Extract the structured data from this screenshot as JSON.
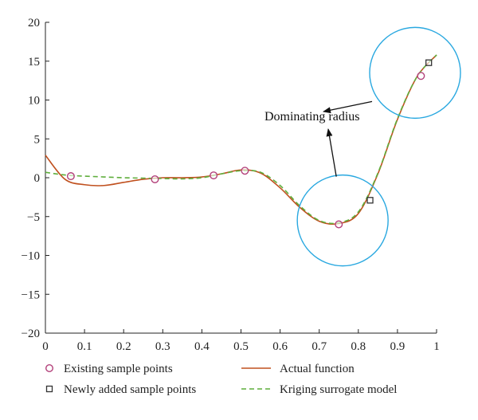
{
  "chart_data": {
    "type": "line",
    "xlim": [
      0,
      1
    ],
    "ylim": [
      -20,
      20
    ],
    "x_ticks": [
      0,
      0.1,
      0.2,
      0.3,
      0.4,
      0.5,
      0.6,
      0.7,
      0.8,
      0.9,
      1
    ],
    "x_tick_labels": [
      "0",
      "0.1",
      "0.2",
      "0.3",
      "0.4",
      "0.5",
      "0.6",
      "0.7",
      "0.8",
      "0.9",
      "1"
    ],
    "y_ticks": [
      -20,
      -15,
      -10,
      -5,
      0,
      5,
      10,
      15,
      20
    ],
    "y_tick_labels": [
      "−20",
      "−15",
      "−10",
      "−5",
      "0",
      "5",
      "10",
      "15",
      "20"
    ],
    "grid": false,
    "legend_position": "bottom",
    "series": [
      {
        "name": "Actual function",
        "style": "solid",
        "color": "#c0501e",
        "x": [
          0,
          0.05,
          0.1,
          0.15,
          0.2,
          0.25,
          0.3,
          0.35,
          0.4,
          0.45,
          0.5,
          0.55,
          0.6,
          0.65,
          0.7,
          0.75,
          0.8,
          0.85,
          0.9,
          0.95,
          1.0
        ],
        "y": [
          2.9,
          -0.2,
          -0.9,
          -1.0,
          -0.6,
          -0.2,
          0.0,
          0.0,
          0.1,
          0.5,
          1.0,
          0.6,
          -1.3,
          -3.8,
          -5.6,
          -5.9,
          -4.6,
          0.5,
          7.5,
          13.0,
          15.8
        ]
      },
      {
        "name": "Kriging surrogate model",
        "style": "dashed",
        "color": "#5fae3c",
        "x": [
          0,
          0.05,
          0.1,
          0.15,
          0.2,
          0.25,
          0.3,
          0.35,
          0.4,
          0.45,
          0.5,
          0.55,
          0.6,
          0.65,
          0.7,
          0.75,
          0.8,
          0.85,
          0.9,
          0.95,
          1.0
        ],
        "y": [
          0.7,
          0.35,
          0.2,
          0.1,
          0.0,
          -0.05,
          -0.1,
          -0.15,
          0.0,
          0.5,
          0.9,
          0.7,
          -1.0,
          -3.6,
          -5.5,
          -5.8,
          -4.4,
          0.6,
          7.6,
          13.0,
          15.8
        ]
      }
    ],
    "existing_sample_points": {
      "name": "Existing sample points",
      "marker": "circle",
      "color": "#b3407a",
      "x": [
        0.065,
        0.28,
        0.43,
        0.51,
        0.75,
        0.96
      ],
      "y": [
        0.2,
        -0.2,
        0.3,
        0.9,
        -6.0,
        13.1
      ]
    },
    "new_sample_points": {
      "name": "Newly added sample points",
      "marker": "square",
      "color": "#333333",
      "x": [
        0.83,
        0.98
      ],
      "y": [
        -2.9,
        14.8
      ]
    },
    "dominating_circles": [
      {
        "center_x": 0.76,
        "center_y": -5.5
      },
      {
        "center_x": 0.945,
        "center_y": 13.5
      }
    ],
    "annotation": {
      "text": "Dominating radius",
      "x": 0.56,
      "y": 7.4
    }
  },
  "colors": {
    "circle": "#29a8e0",
    "axis": "#222222"
  }
}
